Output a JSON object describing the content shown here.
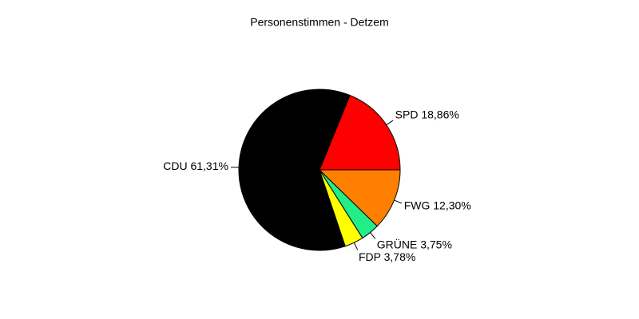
{
  "chart_data": {
    "type": "pie",
    "title": "Personenstimmen - Detzem",
    "values": [
      18.86,
      61.31,
      3.78,
      3.75,
      12.3
    ],
    "value_labels": [
      "SPD 18,86%",
      "CDU 61,31%",
      "FDP 3,78%",
      "GRÜNE 3,75%",
      "FWG 12,30%"
    ],
    "colors": [
      "#ff0000",
      "#000000",
      "#ffff00",
      "#22ee88",
      "#ff8000"
    ]
  }
}
